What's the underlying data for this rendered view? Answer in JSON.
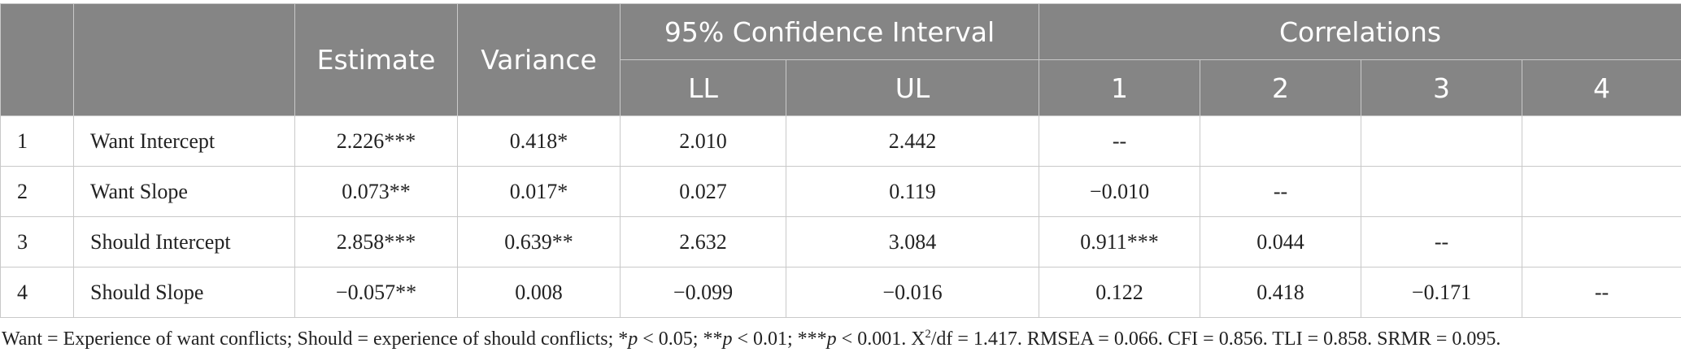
{
  "header": {
    "estimate": "Estimate",
    "variance": "Variance",
    "ci_group": "95% Confidence Interval",
    "corr_group": "Correlations",
    "ll": "LL",
    "ul": "UL",
    "c1": "1",
    "c2": "2",
    "c3": "3",
    "c4": "4"
  },
  "rows": [
    {
      "num": "1",
      "label": "Want Intercept",
      "estimate": "2.226***",
      "variance": "0.418*",
      "ll": "2.010",
      "ul": "2.442",
      "c1": "--",
      "c2": "",
      "c3": "",
      "c4": ""
    },
    {
      "num": "2",
      "label": "Want Slope",
      "estimate": "0.073**",
      "variance": "0.017*",
      "ll": "0.027",
      "ul": "0.119",
      "c1": "−0.010",
      "c2": "--",
      "c3": "",
      "c4": ""
    },
    {
      "num": "3",
      "label": "Should Intercept",
      "estimate": "2.858***",
      "variance": "0.639**",
      "ll": "2.632",
      "ul": "3.084",
      "c1": "0.911***",
      "c2": "0.044",
      "c3": "--",
      "c4": ""
    },
    {
      "num": "4",
      "label": "Should Slope",
      "estimate": "−0.057**",
      "variance": "0.008",
      "ll": "−0.099",
      "ul": "−0.016",
      "c1": "0.122",
      "c2": "0.418",
      "c3": "−0.171",
      "c4": "--"
    }
  ],
  "note": {
    "part1": "Want = Experience of want conflicts; Should = experience of should conflicts; *",
    "p1": "p",
    "part2": " < 0.05; **",
    "p2": "p",
    "part3": " < 0.01; ***",
    "p3": "p",
    "part4": " < 0.001. X",
    "sup": "2",
    "part5": "/df = 1.417. RMSEA = 0.066. CFI = 0.856. TLI = 0.858. SRMR = 0.095."
  }
}
